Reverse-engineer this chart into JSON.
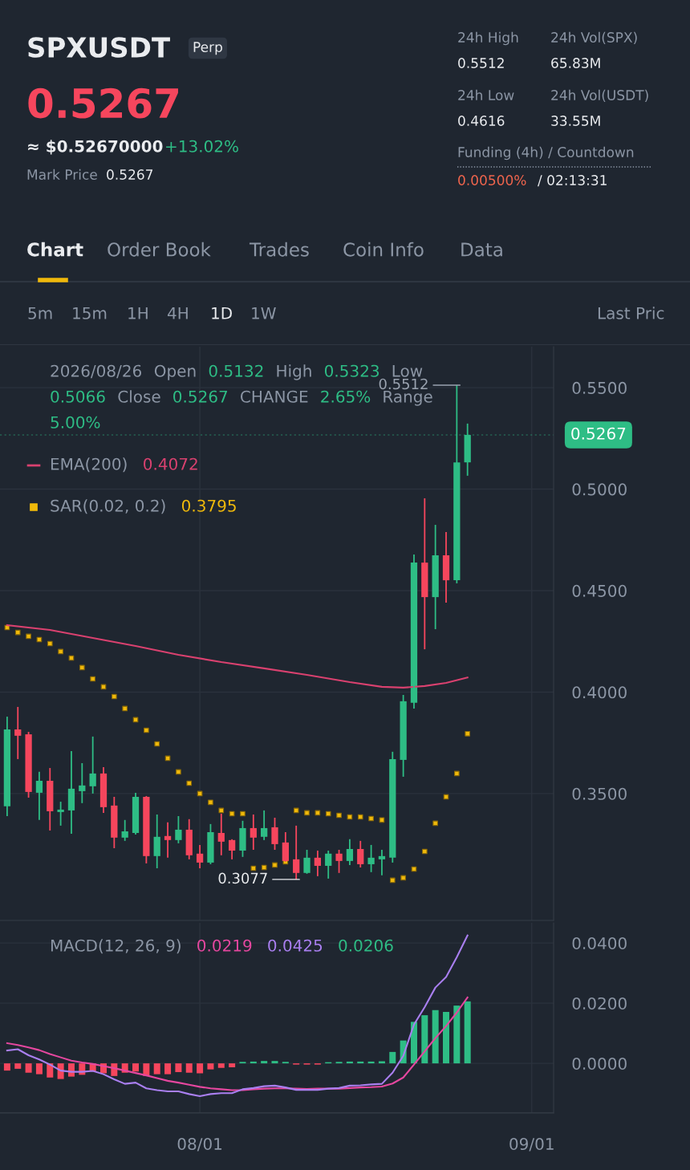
{
  "chart_data": [
    {
      "type": "other",
      "annotations": [
        "SPXUSDT",
        "Perp",
        "0.5267",
        "≈ $0.52670000",
        "+13.02%",
        "Mark Price",
        "0.5267",
        "24h High",
        "0.5512",
        "24h Vol(SPX)",
        "65.83M",
        "24h Low",
        "0.4616",
        "24h Vol(USDT)",
        "33.55M",
        "Funding (4h) / Countdown",
        "0.00500%",
        "/ 02:13:31",
        "Chart",
        "Order Book",
        "Trades",
        "Coin Info",
        "Data",
        "5m",
        "15m",
        "1H",
        "4H",
        "1D",
        "1W",
        "Last Pric"
      ]
    },
    {
      "type": "candlestick",
      "x": [
        "2026-07-14",
        "2026-07-15",
        "2026-07-16",
        "2026-07-17",
        "2026-07-18",
        "2026-07-19",
        "2026-07-20",
        "2026-07-21",
        "2026-07-22",
        "2026-07-23",
        "2026-07-24",
        "2026-07-25",
        "2026-07-26",
        "2026-07-27",
        "2026-07-28",
        "2026-07-29",
        "2026-07-30",
        "2026-07-31",
        "2026-08-01",
        "2026-08-02",
        "2026-08-03",
        "2026-08-04",
        "2026-08-05",
        "2026-08-06",
        "2026-08-07",
        "2026-08-08",
        "2026-08-09",
        "2026-08-10",
        "2026-08-11",
        "2026-08-12",
        "2026-08-13",
        "2026-08-14",
        "2026-08-15",
        "2026-08-16",
        "2026-08-17",
        "2026-08-18",
        "2026-08-19",
        "2026-08-20",
        "2026-08-21",
        "2026-08-22",
        "2026-08-23",
        "2026-08-24",
        "2026-08-25",
        "2026-08-26"
      ],
      "ohlc": [
        [
          0.3437,
          0.3879,
          0.3389,
          0.3816
        ],
        [
          0.3816,
          0.3927,
          0.367,
          0.3785
        ],
        [
          0.3792,
          0.3804,
          0.348,
          0.3508
        ],
        [
          0.3504,
          0.3607,
          0.337,
          0.3563
        ],
        [
          0.3563,
          0.3626,
          0.3318,
          0.3413
        ],
        [
          0.3409,
          0.346,
          0.3342,
          0.3421
        ],
        [
          0.3417,
          0.3709,
          0.3302,
          0.3524
        ],
        [
          0.3512,
          0.365,
          0.3453,
          0.354
        ],
        [
          0.3536,
          0.3781,
          0.35,
          0.3599
        ],
        [
          0.3599,
          0.363,
          0.3405,
          0.3433
        ],
        [
          0.3441,
          0.3484,
          0.3231,
          0.3283
        ],
        [
          0.3283,
          0.337,
          0.3267,
          0.3314
        ],
        [
          0.3306,
          0.3504,
          0.3298,
          0.3484
        ],
        [
          0.3484,
          0.3488,
          0.3156,
          0.3192
        ],
        [
          0.3192,
          0.3397,
          0.3132,
          0.3287
        ],
        [
          0.3291,
          0.3358,
          0.3184,
          0.3271
        ],
        [
          0.3271,
          0.3389,
          0.3255,
          0.3322
        ],
        [
          0.3322,
          0.3374,
          0.3176,
          0.3196
        ],
        [
          0.3204,
          0.3247,
          0.3132,
          0.316
        ],
        [
          0.316,
          0.335,
          0.3152,
          0.331
        ],
        [
          0.3306,
          0.3401,
          0.3196,
          0.3263
        ],
        [
          0.3271,
          0.3275,
          0.3176,
          0.3219
        ],
        [
          0.3219,
          0.3366,
          0.3188,
          0.333
        ],
        [
          0.333,
          0.3397,
          0.3223,
          0.3283
        ],
        [
          0.3287,
          0.3417,
          0.3271,
          0.333
        ],
        [
          0.3334,
          0.3381,
          0.3223,
          0.3251
        ],
        [
          0.3259,
          0.331,
          0.3164,
          0.3168
        ],
        [
          0.3176,
          0.3342,
          0.3077,
          0.3109
        ],
        [
          0.3109,
          0.3223,
          0.3105,
          0.3184
        ],
        [
          0.3184,
          0.3219,
          0.3093,
          0.3144
        ],
        [
          0.3144,
          0.3219,
          0.3081,
          0.3204
        ],
        [
          0.3204,
          0.3223,
          0.3109,
          0.3168
        ],
        [
          0.3168,
          0.3275,
          0.3148,
          0.3227
        ],
        [
          0.3227,
          0.3267,
          0.3136,
          0.3152
        ],
        [
          0.3152,
          0.3247,
          0.3113,
          0.3184
        ],
        [
          0.3176,
          0.3223,
          0.3097,
          0.3192
        ],
        [
          0.3184,
          0.3706,
          0.316,
          0.367
        ],
        [
          0.3666,
          0.3986,
          0.3583,
          0.3955
        ],
        [
          0.3947,
          0.4678,
          0.3919,
          0.4638
        ],
        [
          0.4638,
          0.4955,
          0.4211,
          0.4468
        ],
        [
          0.4468,
          0.4824,
          0.431,
          0.4674
        ],
        [
          0.4674,
          0.4789,
          0.4441,
          0.4551
        ],
        [
          0.4551,
          0.5512,
          0.4536,
          0.5132
        ],
        [
          0.5132,
          0.5323,
          0.5066,
          0.5267
        ]
      ],
      "colors": [
        "#2ebd85",
        "#f6465d",
        "#f6465d",
        "#2ebd85",
        "#f6465d",
        "#2ebd85",
        "#2ebd85",
        "#2ebd85",
        "#2ebd85",
        "#f6465d",
        "#f6465d",
        "#2ebd85",
        "#2ebd85",
        "#f6465d",
        "#2ebd85",
        "#f6465d",
        "#2ebd85",
        "#f6465d",
        "#f6465d",
        "#2ebd85",
        "#f6465d",
        "#f6465d",
        "#2ebd85",
        "#f6465d",
        "#2ebd85",
        "#f6465d",
        "#f6465d",
        "#f6465d",
        "#2ebd85",
        "#f6465d",
        "#2ebd85",
        "#f6465d",
        "#2ebd85",
        "#f6465d",
        "#2ebd85",
        "#2ebd85",
        "#2ebd85",
        "#2ebd85",
        "#2ebd85",
        "#f6465d",
        "#2ebd85",
        "#f6465d",
        "#2ebd85",
        "#2ebd85"
      ],
      "series": [
        {
          "type": "line",
          "name": "EMA(200)",
          "color": "#d9416f",
          "marker": "none",
          "x": [
            "2026-07-14",
            "2026-07-18",
            "2026-07-22",
            "2026-07-26",
            "2026-07-30",
            "2026-08-03",
            "2026-08-07",
            "2026-08-11",
            "2026-08-15",
            "2026-08-18",
            "2026-08-20",
            "2026-08-22",
            "2026-08-24",
            "2026-08-26"
          ],
          "values": [
            0.433,
            0.4306,
            0.4267,
            0.4227,
            0.4184,
            0.4148,
            0.4117,
            0.4085,
            0.4049,
            0.4026,
            0.4022,
            0.403,
            0.4045,
            0.4072
          ]
        },
        {
          "type": "scatter",
          "name": "SAR(0.02, 0.2)",
          "color": "#f0b90b",
          "marker": "square",
          "values": [
            0.4318,
            0.4294,
            0.4275,
            0.4259,
            0.4239,
            0.42,
            0.4168,
            0.4121,
            0.4065,
            0.4026,
            0.3978,
            0.3919,
            0.3864,
            0.3812,
            0.3745,
            0.3674,
            0.3607,
            0.3551,
            0.35,
            0.3457,
            0.3417,
            0.3401,
            0.3401,
            0.3132,
            0.3136,
            0.3148,
            0.3164,
            0.3417,
            0.3405,
            0.3405,
            0.3401,
            0.3393,
            0.3385,
            0.3385,
            0.3377,
            0.337,
            0.3073,
            0.3085,
            0.3128,
            0.3215,
            0.3354,
            0.3484,
            0.3599,
            0.3795
          ]
        }
      ],
      "annotations": [
        "2026/08/26",
        "Open",
        "0.5132",
        "High",
        "0.5323",
        "Low",
        "0.5066",
        "Close",
        "0.5267",
        "CHANGE",
        "2.65%",
        "Range",
        "5.00%",
        "0.4072",
        "0.3795",
        {
          "text": "0.5512",
          "x": "2026-08-25",
          "y": 0.5512
        },
        {
          "text": "0.3077",
          "x": "2026-08-10",
          "y": 0.3077
        }
      ],
      "ref_lines": [
        {
          "axis": "y",
          "value": 0.5267,
          "label": "0.5267",
          "color": "#2ebd85"
        }
      ],
      "xlim": [
        "2026-07-13T08:00",
        "2026-09-03T01:00"
      ],
      "xticks": [
        {
          "value": "2026-08-01",
          "label": null
        },
        {
          "value": "2026-09-01",
          "label": null
        }
      ],
      "ylim": [
        0.2875,
        0.5702
      ],
      "yticks": [
        {
          "value": 0.35,
          "label": "0.3500"
        },
        {
          "value": 0.4,
          "label": "0.4000"
        },
        {
          "value": 0.45,
          "label": "0.4500"
        },
        {
          "value": 0.5,
          "label": "0.5000"
        },
        {
          "value": 0.55,
          "label": "0.5500"
        }
      ],
      "grid": true,
      "legend": "top left",
      "tick_labels": "y"
    },
    {
      "type": "bar",
      "title": "MACD(12, 26, 9)",
      "x": [
        "2026-07-14",
        "2026-07-15",
        "2026-07-16",
        "2026-07-17",
        "2026-07-18",
        "2026-07-19",
        "2026-07-20",
        "2026-07-21",
        "2026-07-22",
        "2026-07-23",
        "2026-07-24",
        "2026-07-25",
        "2026-07-26",
        "2026-07-27",
        "2026-07-28",
        "2026-07-29",
        "2026-07-30",
        "2026-07-31",
        "2026-08-01",
        "2026-08-02",
        "2026-08-03",
        "2026-08-04",
        "2026-08-05",
        "2026-08-06",
        "2026-08-07",
        "2026-08-08",
        "2026-08-09",
        "2026-08-10",
        "2026-08-11",
        "2026-08-12",
        "2026-08-13",
        "2026-08-14",
        "2026-08-15",
        "2026-08-16",
        "2026-08-17",
        "2026-08-18",
        "2026-08-19",
        "2026-08-20",
        "2026-08-21",
        "2026-08-22",
        "2026-08-23",
        "2026-08-24",
        "2026-08-25",
        "2026-08-26"
      ],
      "series": [
        {
          "type": "line",
          "color": "#e5479f",
          "values": [
            0.0067,
            0.0061,
            0.0053,
            0.0044,
            0.0031,
            0.002,
            0.0009,
            0.0003,
            -0.0002,
            -0.0009,
            -0.0016,
            -0.0024,
            -0.0032,
            -0.004,
            -0.0049,
            -0.0058,
            -0.0064,
            -0.0071,
            -0.0078,
            -0.0083,
            -0.0086,
            -0.0089,
            -0.0089,
            -0.0086,
            -0.0084,
            -0.0083,
            -0.0083,
            -0.0084,
            -0.0085,
            -0.0084,
            -0.0084,
            -0.0084,
            -0.0082,
            -0.008,
            -0.0079,
            -0.0077,
            -0.0067,
            -0.0047,
            -0.0004,
            0.004,
            0.0084,
            0.0124,
            0.0169,
            0.0219
          ]
        },
        {
          "type": "line",
          "color": "#a97ff0",
          "values": [
            0.0043,
            0.0047,
            0.0027,
            0.0013,
            -0.0004,
            -0.0024,
            -0.0028,
            -0.0028,
            -0.0025,
            -0.0036,
            -0.0053,
            -0.0068,
            -0.0064,
            -0.0083,
            -0.0089,
            -0.0093,
            -0.0093,
            -0.0102,
            -0.0109,
            -0.0102,
            -0.0099,
            -0.0099,
            -0.0086,
            -0.0082,
            -0.0076,
            -0.0074,
            -0.008,
            -0.0088,
            -0.0088,
            -0.0088,
            -0.0084,
            -0.0082,
            -0.0074,
            -0.0073,
            -0.007,
            -0.0068,
            -0.0031,
            0.0025,
            0.0129,
            0.0187,
            0.0252,
            0.0287,
            0.0353,
            0.0425
          ]
        },
        {
          "type": "bar",
          "color": "#2ebd85",
          "values": [
            -0.0024,
            -0.0018,
            -0.0031,
            -0.0036,
            -0.0047,
            -0.0052,
            -0.0044,
            -0.0038,
            -0.0027,
            -0.0033,
            -0.0042,
            -0.0031,
            -0.0027,
            -0.0042,
            -0.0036,
            -0.0036,
            -0.0029,
            -0.0031,
            -0.0033,
            -0.002,
            -0.0015,
            -0.0013,
            0.0005,
            0.0006,
            0.0008,
            0.0008,
            0.0005,
            -0.0004,
            -0.0004,
            -0.0004,
            0.0004,
            0.0005,
            0.0006,
            0.0006,
            0.0006,
            0.0007,
            0.0038,
            0.0076,
            0.0138,
            0.016,
            0.0177,
            0.0171,
            0.0192,
            0.0206
          ],
          "colors": [
            "#f6465d",
            "#f6465d",
            "#f6465d",
            "#f6465d",
            "#f6465d",
            "#f6465d",
            "#f6465d",
            "#f6465d",
            "#f6465d",
            "#f6465d",
            "#f6465d",
            "#f6465d",
            "#f6465d",
            "#f6465d",
            "#f6465d",
            "#f6465d",
            "#f6465d",
            "#f6465d",
            "#f6465d",
            "#f6465d",
            "#f6465d",
            "#f6465d",
            "#2ebd85",
            "#2ebd85",
            "#2ebd85",
            "#2ebd85",
            "#2ebd85",
            "#f6465d",
            "#f6465d",
            "#f6465d",
            "#2ebd85",
            "#2ebd85",
            "#2ebd85",
            "#2ebd85",
            "#2ebd85",
            "#2ebd85",
            "#2ebd85",
            "#2ebd85",
            "#2ebd85",
            "#2ebd85",
            "#2ebd85",
            "#2ebd85",
            "#2ebd85",
            "#2ebd85"
          ]
        }
      ],
      "annotations": [
        "0.0219",
        "0.0425",
        "0.0206"
      ],
      "xlim": [
        "2026-07-13T08:00",
        "2026-09-03T01:00"
      ],
      "xticks": [
        {
          "value": "2026-08-01",
          "label": "08/01"
        },
        {
          "value": "2026-09-01",
          "label": "09/01"
        }
      ],
      "ylim": [
        -0.0165,
        0.0467
      ],
      "yticks": [
        {
          "value": 0,
          "label": "0.0000"
        },
        {
          "value": 0.02,
          "label": "0.0200"
        },
        {
          "value": 0.04,
          "label": "0.0400"
        }
      ],
      "grid": true
    }
  ]
}
